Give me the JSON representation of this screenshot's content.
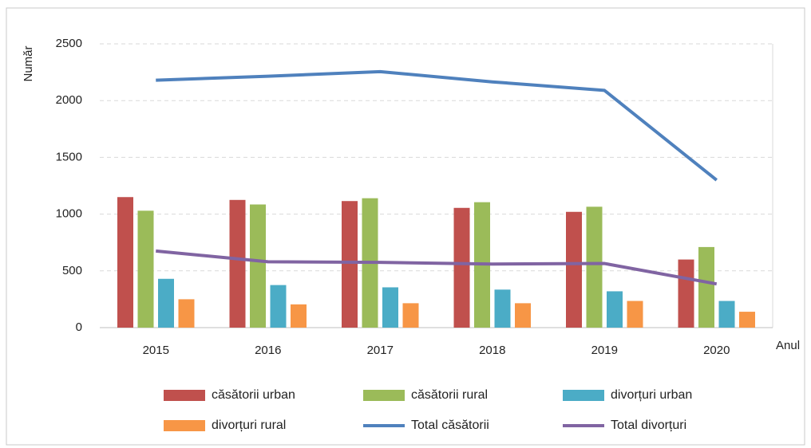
{
  "chart_data": {
    "type": "bar",
    "y_label": "Număr",
    "x_label": "Anul",
    "categories": [
      "2015",
      "2016",
      "2017",
      "2018",
      "2019",
      "2020"
    ],
    "ylim": [
      0,
      2500
    ],
    "yticks": [
      0,
      500,
      1000,
      1500,
      2000,
      2500
    ],
    "grid": true,
    "series": [
      {
        "name": "căsătorii urban",
        "type": "bar",
        "color": "#c0504d",
        "values": [
          1150,
          1125,
          1115,
          1055,
          1020,
          600
        ]
      },
      {
        "name": "căsătorii rural",
        "type": "bar",
        "color": "#9bbb59",
        "values": [
          1030,
          1085,
          1140,
          1105,
          1065,
          710
        ]
      },
      {
        "name": "divorțuri urban",
        "type": "bar",
        "color": "#4bacc6",
        "values": [
          430,
          375,
          355,
          335,
          320,
          235
        ]
      },
      {
        "name": "divorțuri rural",
        "type": "bar",
        "color": "#f79646",
        "values": [
          250,
          205,
          215,
          215,
          235,
          140
        ]
      },
      {
        "name": "Total căsătorii",
        "type": "line",
        "color": "#4f81bd",
        "values": [
          2180,
          2215,
          2255,
          2165,
          2090,
          1300
        ]
      },
      {
        "name": "Total divorțuri",
        "type": "line",
        "color": "#8064a2",
        "values": [
          675,
          580,
          575,
          560,
          565,
          385
        ]
      }
    ]
  }
}
